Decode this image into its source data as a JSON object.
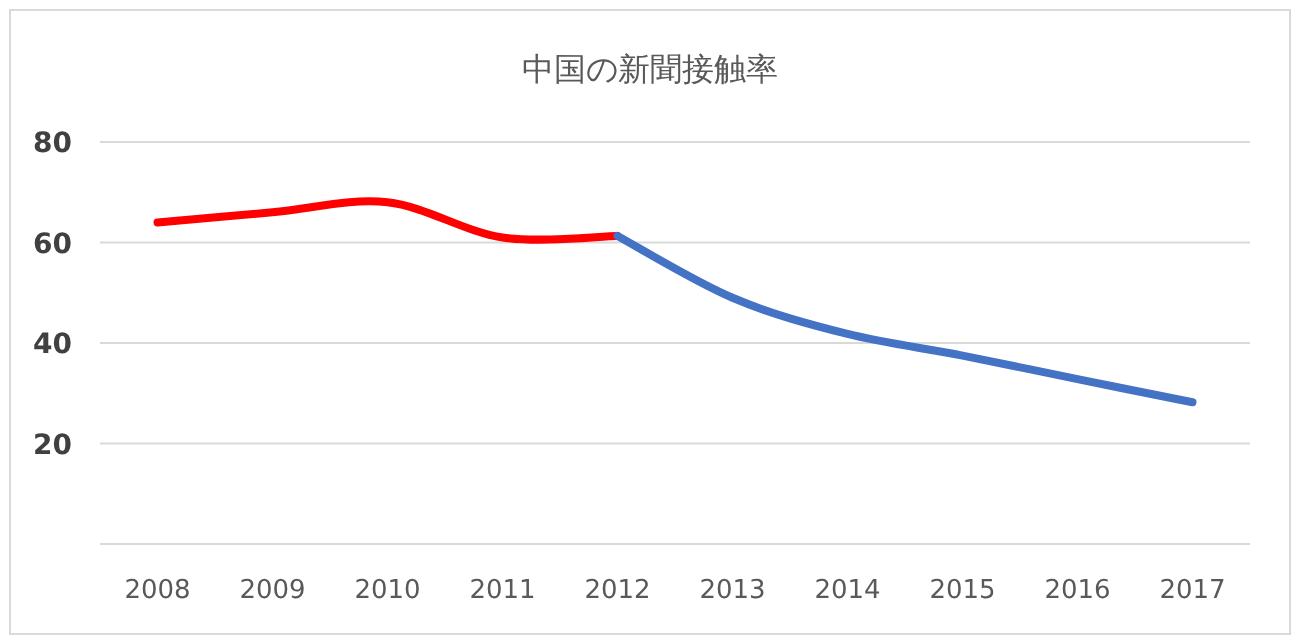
{
  "chart_data": {
    "type": "line",
    "title": "中国の新聞接触率",
    "categories": [
      "2008",
      "2009",
      "2010",
      "2011",
      "2012",
      "2013",
      "2014",
      "2015",
      "2016",
      "2017"
    ],
    "series": [
      {
        "color": "#ff0000",
        "values": [
          64,
          66,
          68,
          61,
          61.3,
          null,
          null,
          null,
          null,
          null
        ]
      },
      {
        "color": "#4472c4",
        "values": [
          null,
          null,
          null,
          null,
          61.3,
          49,
          41.8,
          37.5,
          32.8,
          28.2
        ]
      }
    ],
    "ylim": [
      0,
      80
    ],
    "yticks": [
      {
        "value": 0,
        "label": null
      },
      20,
      40,
      60,
      80
    ],
    "grid": "y",
    "marker": "none",
    "line_style": "solid"
  }
}
